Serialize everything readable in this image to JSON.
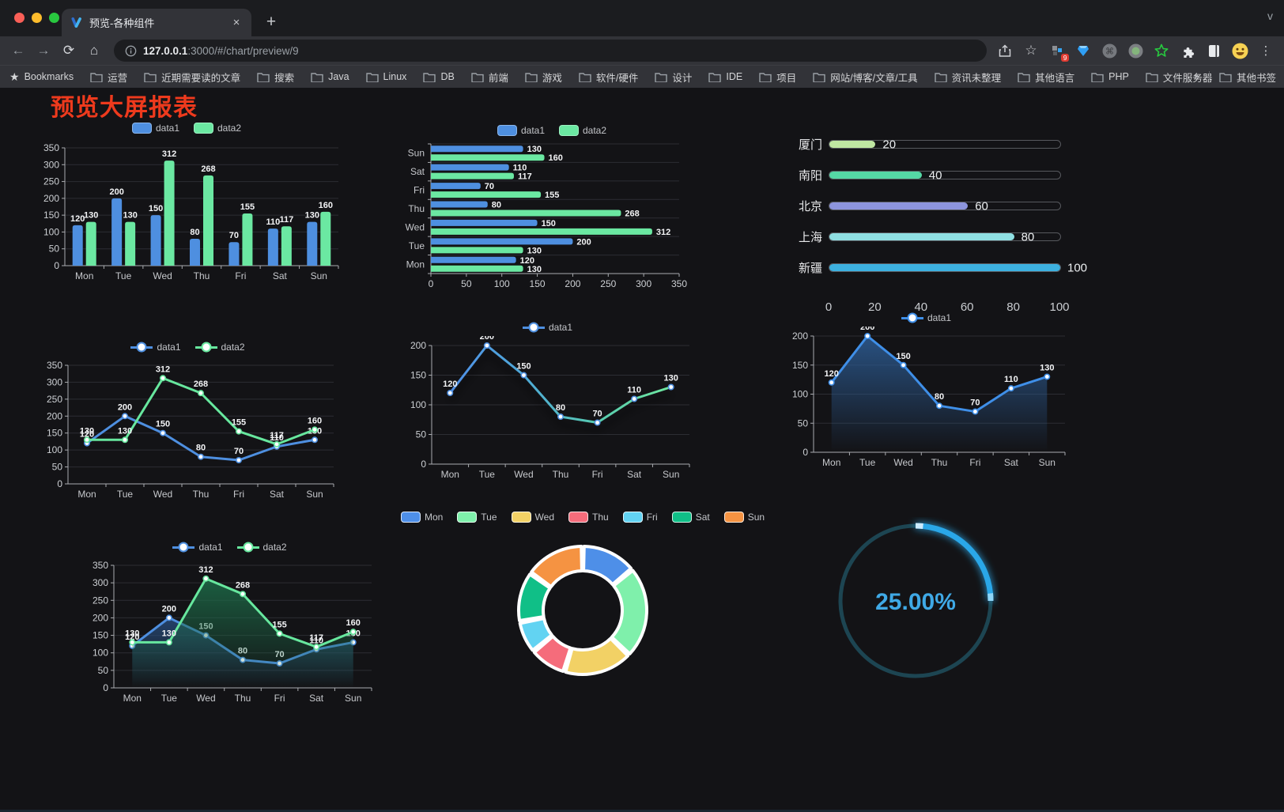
{
  "browser": {
    "traffic_lights": [
      "#f95f57",
      "#fdbc2c",
      "#29c73f"
    ],
    "tab": {
      "title": "预览-各种组件",
      "close": "×",
      "new_tab": "+",
      "chevron": "v"
    },
    "toolbar": {
      "back": "←",
      "forward": "→",
      "reload": "⟳",
      "home": "⌂",
      "url_host": "127.0.0.1",
      "url_rest": ":3000/#/chart/preview/9",
      "star": "☆",
      "ext_badge": "9",
      "menu": "⋮"
    },
    "bookmarks_label": "Bookmarks",
    "bookmarks": [
      "运营",
      "近期需要读的文章",
      "搜索",
      "Java",
      "Linux",
      "DB",
      "前端",
      "游戏",
      "软件/硬件",
      "设计",
      "IDE",
      "项目",
      "网站/博客/文章/工具",
      "资讯未整理",
      "其他语言",
      "PHP",
      "文件服务器"
    ],
    "bookmarks_overflow": "»",
    "other_bookmarks": "其他书签"
  },
  "page": {
    "title": "预览大屏报表"
  },
  "chart_data": [
    {
      "type": "bar",
      "legend_marker": "rect",
      "categories": [
        "Mon",
        "Tue",
        "Wed",
        "Thu",
        "Fri",
        "Sat",
        "Sun"
      ],
      "series": [
        {
          "name": "data1",
          "color": "#4e8fe0",
          "values": [
            120,
            200,
            150,
            80,
            70,
            110,
            130
          ]
        },
        {
          "name": "data2",
          "color": "#6be8a2",
          "values": [
            130,
            130,
            312,
            268,
            155,
            117,
            160
          ]
        }
      ],
      "ylim": [
        0,
        350
      ],
      "ytick": 50
    },
    {
      "type": "bar-horizontal",
      "legend_marker": "rect",
      "categories": [
        "Sun",
        "Sat",
        "Fri",
        "Thu",
        "Wed",
        "Tue",
        "Mon"
      ],
      "series": [
        {
          "name": "data1",
          "color": "#4e8fe0",
          "values": [
            130,
            110,
            70,
            80,
            150,
            200,
            120
          ]
        },
        {
          "name": "data2",
          "color": "#6be8a2",
          "values": [
            160,
            117,
            155,
            268,
            312,
            130,
            130
          ]
        }
      ],
      "xlim": [
        0,
        350
      ],
      "xtick": 50
    },
    {
      "type": "progress-list",
      "max": 100,
      "items": [
        {
          "label": "厦门",
          "value": 20,
          "color": "#bfe6a2"
        },
        {
          "label": "南阳",
          "value": 40,
          "color": "#55d8a5"
        },
        {
          "label": "北京",
          "value": 60,
          "color": "#8d95dd"
        },
        {
          "label": "上海",
          "value": 80,
          "color": "#8fe0e3"
        },
        {
          "label": "新疆",
          "value": 100,
          "color": "#3db1e0"
        }
      ],
      "axis": [
        0,
        20,
        40,
        60,
        80,
        100
      ]
    },
    {
      "type": "line",
      "legend_marker": "dot",
      "categories": [
        "Mon",
        "Tue",
        "Wed",
        "Thu",
        "Fri",
        "Sat",
        "Sun"
      ],
      "series": [
        {
          "name": "data1",
          "color": "#4e8fe0",
          "values": [
            120,
            200,
            150,
            80,
            70,
            110,
            130
          ]
        },
        {
          "name": "data2",
          "color": "#67e79e",
          "values": [
            130,
            130,
            312,
            268,
            155,
            117,
            160
          ]
        }
      ],
      "ylim": [
        0,
        350
      ],
      "ytick": 50
    },
    {
      "type": "line",
      "legend_marker": "dot",
      "shadow": true,
      "categories": [
        "Mon",
        "Tue",
        "Wed",
        "Thu",
        "Fri",
        "Sat",
        "Sun"
      ],
      "series": [
        {
          "name": "data1",
          "color": "#4e8fe0",
          "gradient": [
            "#4f8fe8",
            "#4fa9d8",
            "#57cbb0",
            "#6fe8a0"
          ],
          "values": [
            120,
            200,
            150,
            80,
            70,
            110,
            130
          ]
        }
      ],
      "ylim": [
        0,
        200
      ],
      "ytick": 50
    },
    {
      "type": "line",
      "legend_marker": "dot",
      "categories": [
        "Mon",
        "Tue",
        "Wed",
        "Thu",
        "Fri",
        "Sat",
        "Sun"
      ],
      "series": [
        {
          "name": "data1",
          "color": "#3f8fe8",
          "area": "#2d5d96",
          "values": [
            120,
            200,
            150,
            80,
            70,
            110,
            130
          ]
        }
      ],
      "ylim": [
        0,
        200
      ],
      "ytick": 50
    },
    {
      "type": "line",
      "legend_marker": "dot",
      "categories": [
        "Mon",
        "Tue",
        "Wed",
        "Thu",
        "Fri",
        "Sat",
        "Sun"
      ],
      "series": [
        {
          "name": "data1",
          "color": "#4e8fe0",
          "area": "#274b79",
          "values": [
            120,
            200,
            150,
            80,
            70,
            110,
            130
          ]
        },
        {
          "name": "data2",
          "color": "#67e79e",
          "area": "#1d6b48",
          "values": [
            130,
            130,
            312,
            268,
            155,
            117,
            160
          ]
        }
      ],
      "ylim": [
        0,
        350
      ],
      "ytick": 50
    },
    {
      "type": "pie",
      "legend_marker": "rect-border",
      "labels": [
        "Mon",
        "Tue",
        "Wed",
        "Thu",
        "Fri",
        "Sat",
        "Sun"
      ],
      "values": [
        120,
        200,
        150,
        80,
        70,
        110,
        130
      ],
      "colors": [
        "#4e8fe8",
        "#7ff0ab",
        "#f2d165",
        "#f56c7b",
        "#62d3f2",
        "#10bf87",
        "#f59342"
      ]
    },
    {
      "type": "gauge",
      "value": 25,
      "text": "25.00%",
      "color": "#2aa7e8",
      "track": "#1d4552",
      "text_color": "#3fa9e6"
    }
  ]
}
